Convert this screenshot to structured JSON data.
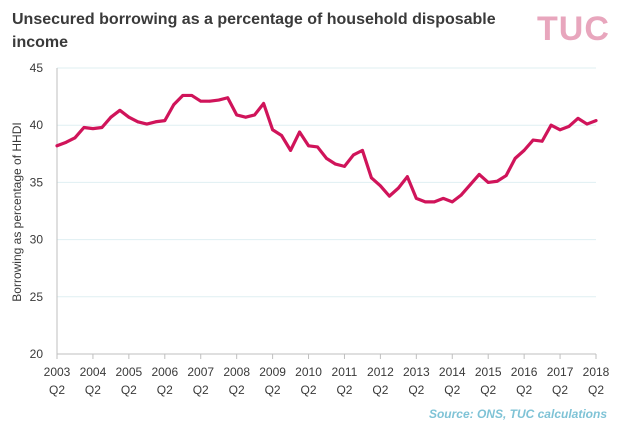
{
  "header": {
    "title": "Unsecured borrowing as a percentage of household disposable income",
    "logo_text": "TUC"
  },
  "footer": {
    "source": "Source:  ONS, TUC calculations"
  },
  "colors": {
    "line": "#d0145a",
    "grid": "#dfeff2",
    "axis": "#bfbfbf"
  },
  "chart_data": {
    "type": "line",
    "title": "Unsecured borrowing as a percentage of household disposable income",
    "xlabel": "",
    "ylabel": "Borrowing as percentage of HHDI",
    "ylim": [
      20,
      45
    ],
    "yticks": [
      "20",
      "25",
      "30",
      "35",
      "40",
      "45"
    ],
    "grid": true,
    "xticks": [
      {
        "year": "2003",
        "q": "Q2"
      },
      {
        "year": "2004",
        "q": "Q2"
      },
      {
        "year": "2005",
        "q": "Q2"
      },
      {
        "year": "2006",
        "q": "Q2"
      },
      {
        "year": "2007",
        "q": "Q2"
      },
      {
        "year": "2008",
        "q": "Q2"
      },
      {
        "year": "2009",
        "q": "Q2"
      },
      {
        "year": "2010",
        "q": "Q2"
      },
      {
        "year": "2011",
        "q": "Q2"
      },
      {
        "year": "2012",
        "q": "Q2"
      },
      {
        "year": "2013",
        "q": "Q2"
      },
      {
        "year": "2014",
        "q": "Q2"
      },
      {
        "year": "2015",
        "q": "Q2"
      },
      {
        "year": "2016",
        "q": "Q2"
      },
      {
        "year": "2017",
        "q": "Q2"
      },
      {
        "year": "2018",
        "q": "Q2"
      }
    ],
    "series": [
      {
        "x": [
          "2003 Q2",
          "2003 Q3",
          "2003 Q4",
          "2004 Q1",
          "2004 Q2",
          "2004 Q3",
          "2004 Q4",
          "2005 Q1",
          "2005 Q2",
          "2005 Q3",
          "2005 Q4",
          "2006 Q1",
          "2006 Q2",
          "2006 Q3",
          "2006 Q4",
          "2007 Q1",
          "2007 Q2",
          "2007 Q3",
          "2007 Q4",
          "2008 Q1",
          "2008 Q2",
          "2008 Q3",
          "2008 Q4",
          "2009 Q1",
          "2009 Q2",
          "2009 Q3",
          "2009 Q4",
          "2010 Q1",
          "2010 Q2",
          "2010 Q3",
          "2010 Q4",
          "2011 Q1",
          "2011 Q2",
          "2011 Q3",
          "2011 Q4",
          "2012 Q1",
          "2012 Q2",
          "2012 Q3",
          "2012 Q4",
          "2013 Q1",
          "2013 Q2",
          "2013 Q3",
          "2013 Q4",
          "2014 Q1",
          "2014 Q2",
          "2014 Q3",
          "2014 Q4",
          "2015 Q1",
          "2015 Q2",
          "2015 Q3",
          "2015 Q4",
          "2016 Q1",
          "2016 Q2",
          "2016 Q3",
          "2016 Q4",
          "2017 Q1",
          "2017 Q2",
          "2017 Q3",
          "2017 Q4",
          "2018 Q1",
          "2018 Q2"
        ],
        "values": [
          38.2,
          38.5,
          38.9,
          39.8,
          39.7,
          39.8,
          40.7,
          41.3,
          40.7,
          40.3,
          40.1,
          40.3,
          40.4,
          41.8,
          42.6,
          42.6,
          42.1,
          42.1,
          42.2,
          42.4,
          40.9,
          40.7,
          40.9,
          41.9,
          39.6,
          39.1,
          37.8,
          39.4,
          38.2,
          38.1,
          37.1,
          36.6,
          36.4,
          37.4,
          37.8,
          35.4,
          34.7,
          33.8,
          34.5,
          35.5,
          33.6,
          33.3,
          33.3,
          33.6,
          33.3,
          33.9,
          34.8,
          35.7,
          35.0,
          35.1,
          35.6,
          37.1,
          37.8,
          38.7,
          38.6,
          40.0,
          39.6,
          39.9,
          40.6,
          40.1,
          40.4
        ]
      }
    ]
  }
}
